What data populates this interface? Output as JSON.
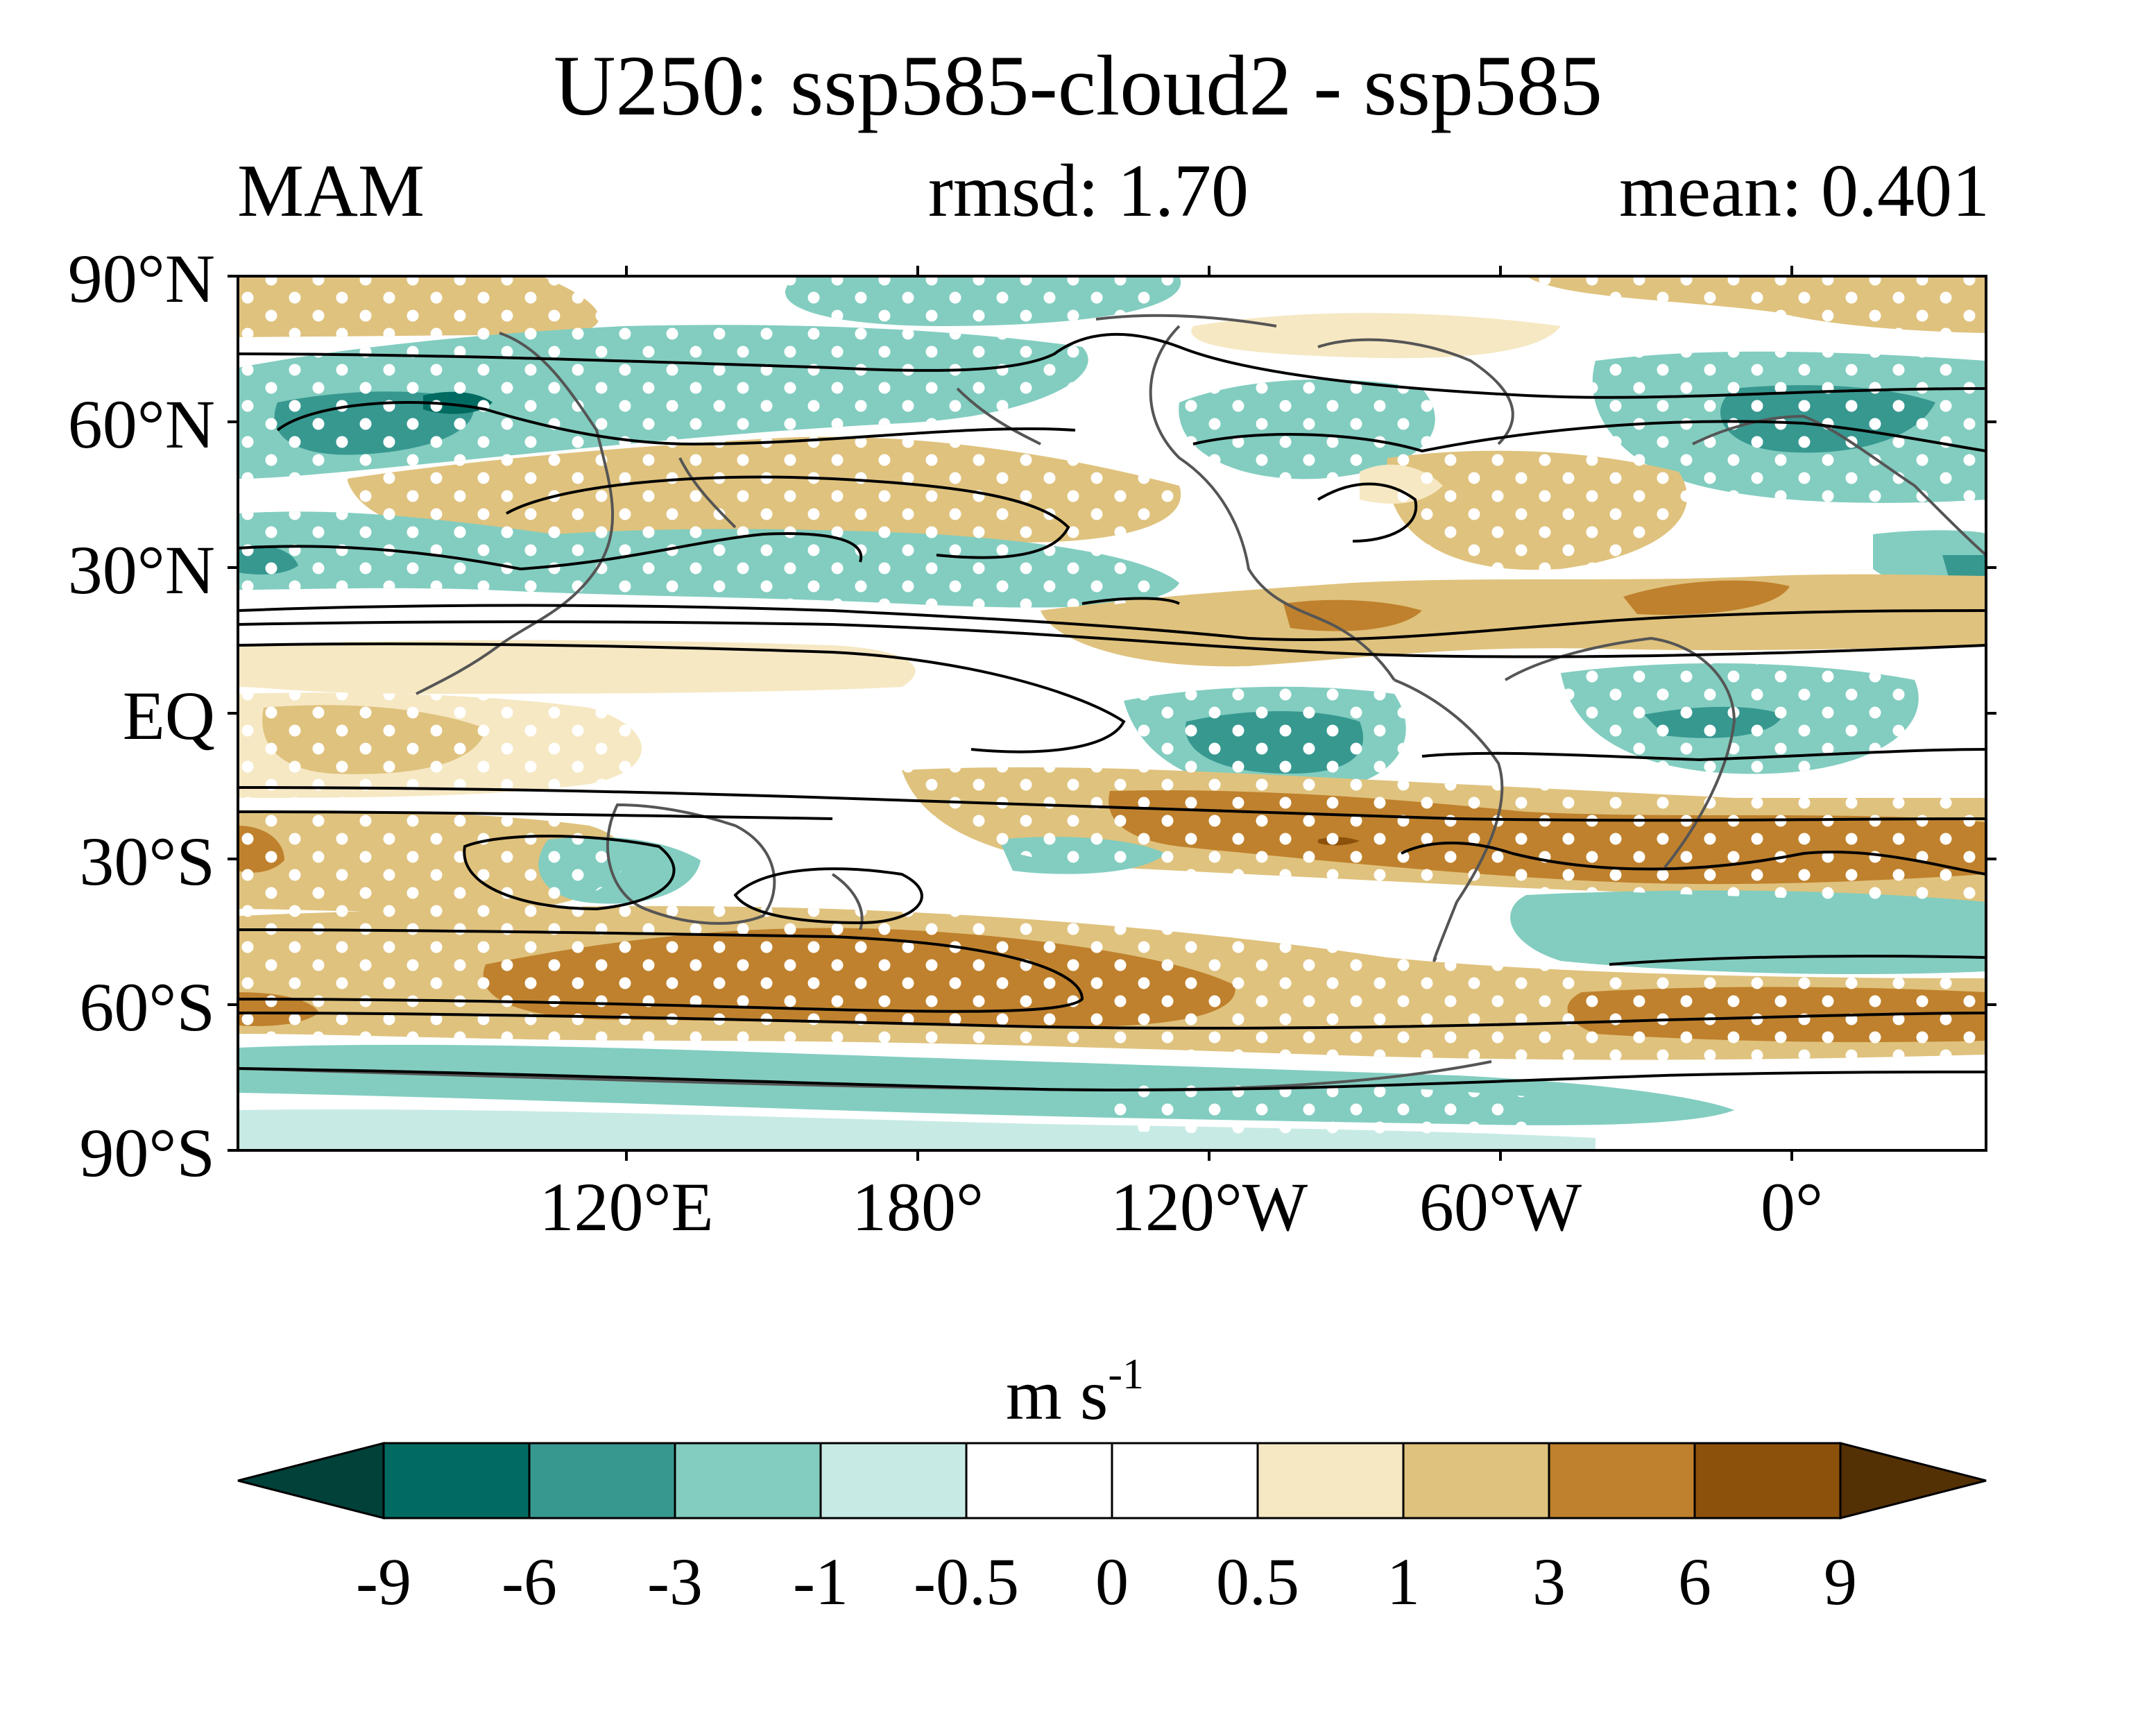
{
  "title": "U250: ssp585-cloud2 - ssp585",
  "season": "MAM",
  "rmsd_label": "rmsd: 1.70",
  "mean_label": "mean: 0.401",
  "lat_labels": [
    "90°N",
    "60°N",
    "30°N",
    "EQ",
    "30°S",
    "60°S",
    "90°S"
  ],
  "lon_labels": [
    "120°E",
    "180°",
    "120°W",
    "60°W",
    "0°"
  ],
  "colorbar": {
    "units": "m s",
    "units_exponent": "-1",
    "levels": [
      "-9",
      "-6",
      "-3",
      "-1",
      "-0.5",
      "0",
      "0.5",
      "1",
      "3",
      "6",
      "9"
    ],
    "colors": [
      "#00413a",
      "#016b62",
      "#379890",
      "#82cdc0",
      "#c7eae5",
      "#ffffff",
      "#ffffff",
      "#f6e8c3",
      "#dfc27d",
      "#bf812d",
      "#8c510a",
      "#543005"
    ]
  }
}
